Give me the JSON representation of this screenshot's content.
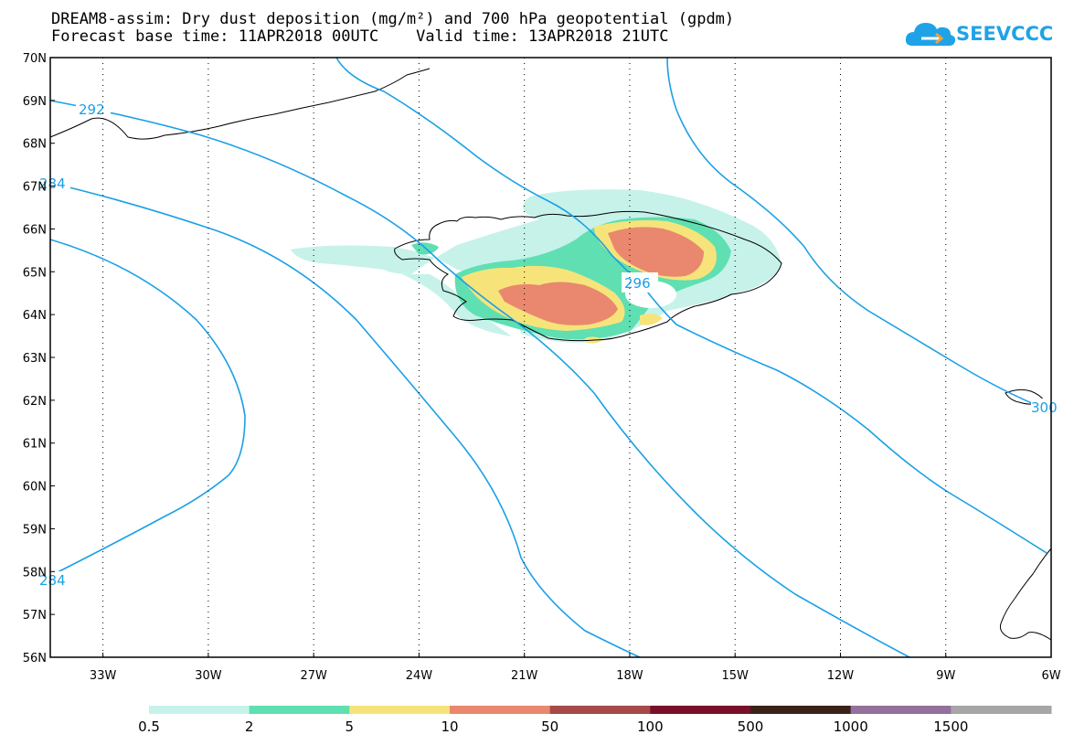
{
  "title": {
    "line1": "DREAM8-assim: Dry dust deposition (mg/m²) and 700 hPa geopotential (gpdm)",
    "line2": "Forecast base time: 11APR2018 00UTC    Valid time: 13APR2018 21UTC"
  },
  "logo": {
    "text": "SEEVCCC",
    "color": "#1fa3e6"
  },
  "map": {
    "lat_labels": [
      "70N",
      "69N",
      "68N",
      "67N",
      "66N",
      "65N",
      "64N",
      "63N",
      "62N",
      "61N",
      "60N",
      "59N",
      "58N",
      "57N",
      "56N"
    ],
    "lon_labels": [
      "33W",
      "30W",
      "27W",
      "24W",
      "21W",
      "18W",
      "15W",
      "12W",
      "9W",
      "6W"
    ],
    "lat_range": [
      56,
      70
    ],
    "lon_range": [
      -34.5,
      -6
    ],
    "grid": "dotted",
    "contour_color": "#1aa0e6",
    "contour_labels": [
      "292",
      "284",
      "296",
      "284",
      "300"
    ]
  },
  "legend": {
    "labels": [
      "0.5",
      "2",
      "5",
      "10",
      "50",
      "100",
      "500",
      "1000",
      "1500"
    ],
    "colors": [
      "#c6f2ea",
      "#5fdfb2",
      "#f6e47a",
      "#e9886e",
      "#a54a48",
      "#7a0f2a",
      "#3a2218",
      "#94709c",
      "#a6a6a6"
    ]
  },
  "dust_colors": {
    "light": "#c6f2ea",
    "green": "#5fdfb2",
    "yellow": "#f6e47a",
    "orange": "#e9886e"
  }
}
